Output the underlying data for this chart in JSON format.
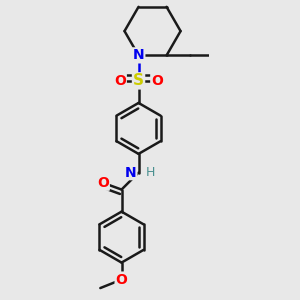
{
  "bg_color": "#e8e8e8",
  "bond_color": "#1a1a1a",
  "bond_width": 1.8,
  "figsize": [
    3.0,
    3.0
  ],
  "dpi": 100,
  "colors": {
    "N": "#0000ee",
    "O": "#ff0000",
    "S": "#cccc00",
    "C": "#1a1a1a",
    "H": "#4a9090"
  },
  "xlim": [
    -0.55,
    0.85
  ],
  "ylim": [
    -1.65,
    1.85
  ]
}
